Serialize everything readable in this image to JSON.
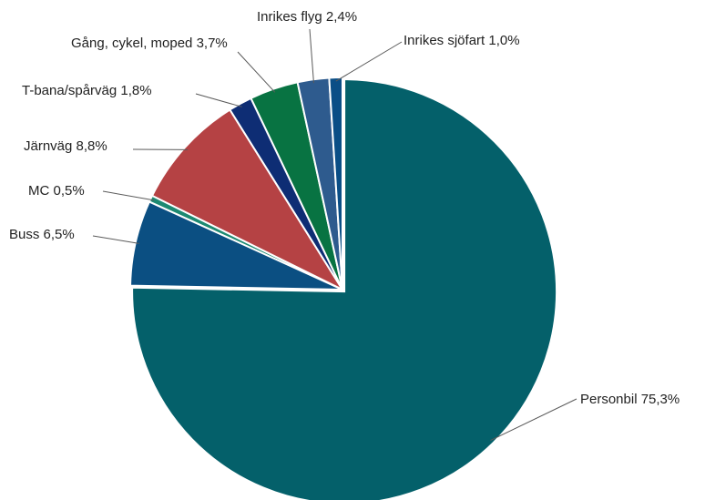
{
  "chart_data": {
    "type": "pie",
    "slices": [
      {
        "label": "Personbil 75,3%",
        "value": 75.3,
        "color": "#04606a"
      },
      {
        "label": "Buss 6,5%",
        "value": 6.5,
        "color": "#0b4f82"
      },
      {
        "label": "MC 0,5%",
        "value": 0.5,
        "color": "#1d8a72"
      },
      {
        "label": "Järnväg 8,8%",
        "value": 8.8,
        "color": "#b54244"
      },
      {
        "label": "T-bana/spårväg 1,8%",
        "value": 1.8,
        "color": "#0e2d74"
      },
      {
        "label": "Gång, cykel, moped 3,7%",
        "value": 3.7,
        "color": "#087342"
      },
      {
        "label": "Inrikes flyg 2,4%",
        "value": 2.4,
        "color": "#2e5b8e"
      },
      {
        "label": "Inrikes sjöfart 1,0%",
        "value": 1.0,
        "color": "#0a4e86"
      }
    ],
    "start_angle_deg": 0,
    "direction": "clockwise",
    "exploded_slice": "Personbil 75,3%",
    "legend": "none"
  }
}
